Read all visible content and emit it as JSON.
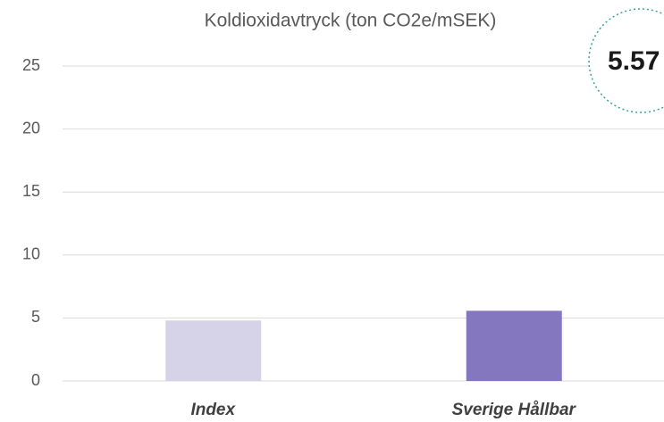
{
  "chart_data": {
    "type": "bar",
    "title": "Koldioxidavtryck (ton CO2e/mSEK)",
    "categories": [
      "Index",
      "Sverige Hållbar"
    ],
    "values": [
      4.8,
      5.57
    ],
    "value_labels": [
      null,
      "5.57"
    ],
    "colors": [
      "#d6d3e8",
      "#8576c0"
    ],
    "ylim": [
      0,
      25
    ],
    "yticks": [
      0,
      5,
      10,
      15,
      20,
      25
    ],
    "grid": true
  }
}
